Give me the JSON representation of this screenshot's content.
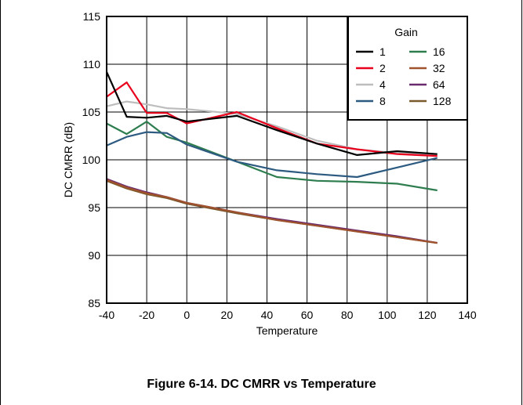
{
  "figure": {
    "caption": "Figure 6-14. DC CMRR vs Temperature"
  },
  "chart_data": {
    "type": "line",
    "xlabel": "Temperature",
    "ylabel": "DC CMRR (dB)",
    "xlim": [
      -40,
      140
    ],
    "ylim": [
      85,
      115
    ],
    "xticks": [
      -40,
      -20,
      0,
      20,
      40,
      60,
      80,
      100,
      120,
      140
    ],
    "yticks": [
      85,
      90,
      95,
      100,
      105,
      110,
      115
    ],
    "grid": true,
    "legend": {
      "title": "Gain",
      "placement": "top-right"
    },
    "series": [
      {
        "name": "1",
        "color": "#000000",
        "x": [
          -40,
          -30,
          -20,
          -10,
          0,
          25,
          45,
          65,
          85,
          105,
          125
        ],
        "y": [
          109.2,
          104.5,
          104.4,
          104.6,
          104.0,
          104.6,
          103.1,
          101.7,
          100.5,
          100.9,
          100.6
        ]
      },
      {
        "name": "2",
        "color": "#e8001c",
        "x": [
          -40,
          -30,
          -20,
          -10,
          0,
          25,
          45,
          65,
          85,
          105,
          125
        ],
        "y": [
          106.6,
          108.1,
          104.9,
          104.9,
          103.8,
          105.0,
          103.3,
          101.7,
          101.1,
          100.6,
          100.4
        ]
      },
      {
        "name": "4",
        "color": "#bdbdbd",
        "x": [
          -40,
          -30,
          -20,
          -10,
          0,
          25,
          45,
          65,
          85,
          105,
          125
        ],
        "y": [
          105.6,
          106.1,
          105.8,
          105.4,
          105.3,
          104.8,
          103.5,
          102.0,
          101.1,
          100.7,
          100.5
        ]
      },
      {
        "name": "8",
        "color": "#2d5a80",
        "x": [
          -40,
          -30,
          -20,
          -10,
          0,
          25,
          45,
          65,
          85,
          105,
          125
        ],
        "y": [
          101.5,
          102.4,
          102.9,
          102.8,
          101.6,
          99.8,
          98.9,
          98.5,
          98.2,
          99.2,
          100.2
        ]
      },
      {
        "name": "16",
        "color": "#2e7d4f",
        "x": [
          -40,
          -30,
          -20,
          -10,
          0,
          25,
          45,
          65,
          85,
          105,
          125
        ],
        "y": [
          103.8,
          102.7,
          104.0,
          102.4,
          101.8,
          99.8,
          98.2,
          97.8,
          97.7,
          97.5,
          96.8
        ]
      },
      {
        "name": "32",
        "color": "#a0522d",
        "x": [
          -40,
          -30,
          -20,
          -10,
          0,
          25,
          45,
          65,
          85,
          105,
          125
        ],
        "y": [
          97.9,
          97.1,
          96.5,
          96.1,
          95.5,
          94.5,
          93.7,
          93.1,
          92.5,
          91.9,
          91.3
        ]
      },
      {
        "name": "64",
        "color": "#6a2a6e",
        "x": [
          -40,
          -30,
          -20,
          -10,
          0,
          25,
          45,
          65,
          85,
          105,
          125
        ],
        "y": [
          98.0,
          97.2,
          96.6,
          96.1,
          95.5,
          94.5,
          93.8,
          93.2,
          92.6,
          92.0,
          91.3
        ]
      },
      {
        "name": "128",
        "color": "#7a5a2a",
        "x": [
          -40,
          -30,
          -20,
          -10,
          0,
          25,
          45,
          65,
          85,
          105,
          125
        ],
        "y": [
          97.8,
          97.0,
          96.4,
          96.0,
          95.4,
          94.4,
          93.7,
          93.1,
          92.5,
          91.9,
          91.3
        ]
      }
    ]
  }
}
